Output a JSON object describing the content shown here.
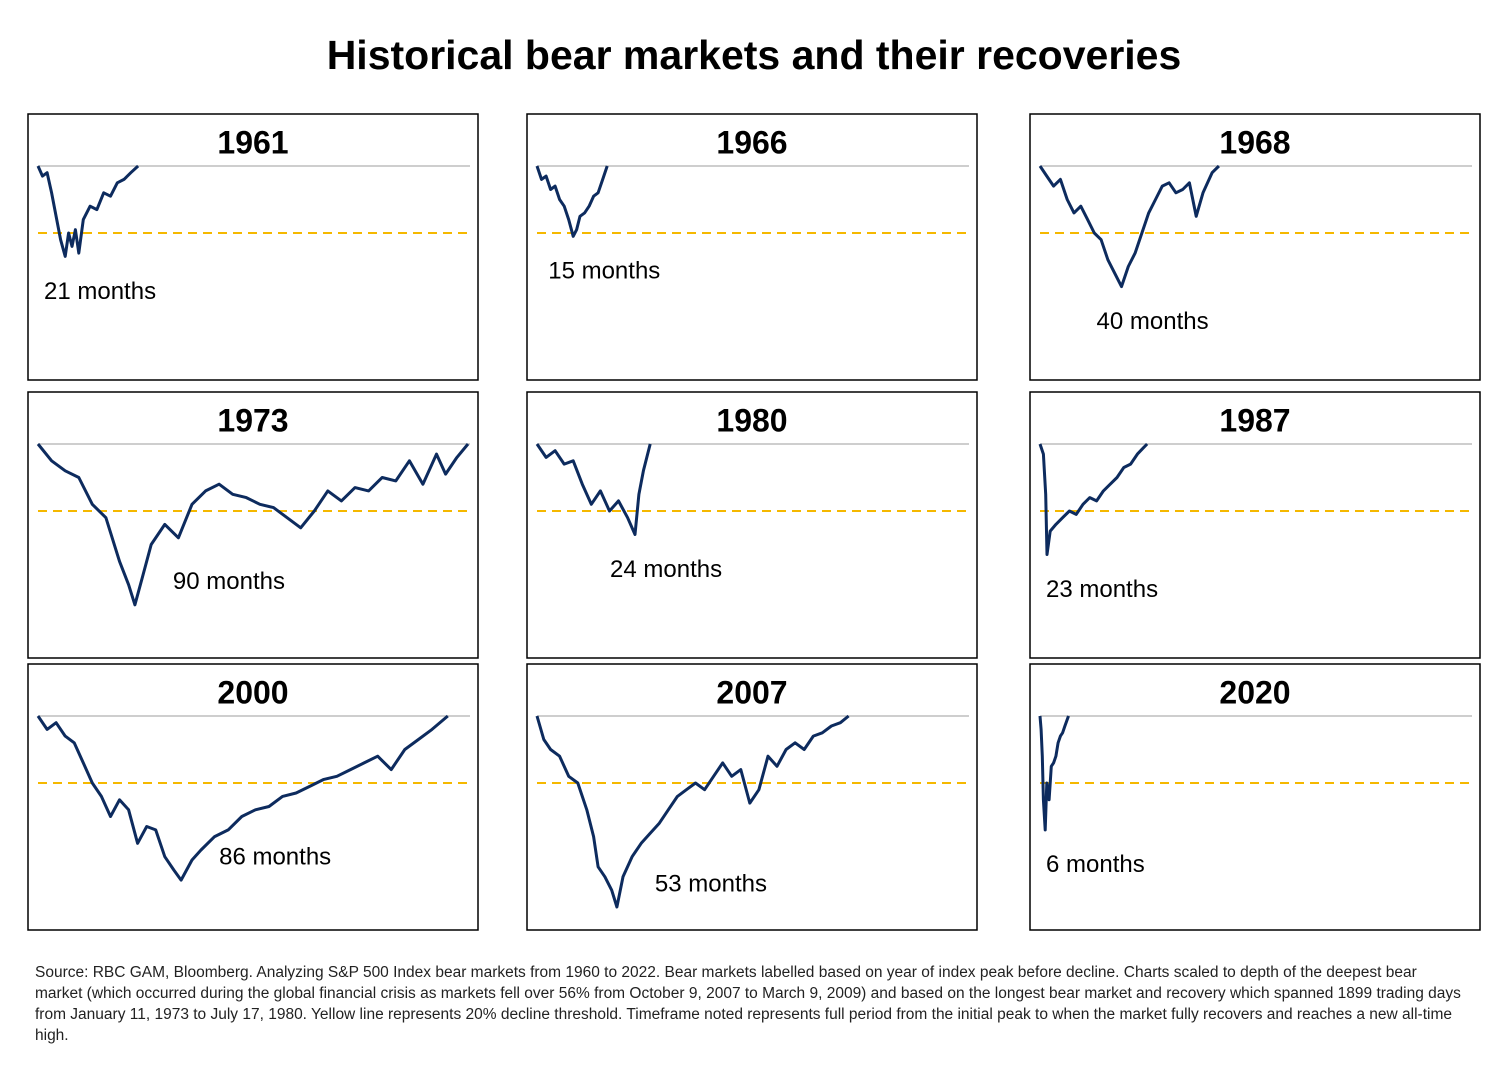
{
  "title": "Historical bear markets and their recoveries",
  "source": "Source: RBC GAM, Bloomberg. Analyzing S&P 500 Index bear markets from 1960 to 2022. Bear markets labelled based on year of index peak before decline. Charts scaled to depth of the deepest bear market (which occurred during the global financial crisis as markets fell over 56% from October 9, 2007 to March 9, 2009) and based on the longest bear market and recovery which spanned 1899 trading days from January 11, 1973 to July 17, 1980. Yellow line represents 20% decline threshold. Timeframe noted represents full period from the initial peak to when the market fully recovers and reaches a new all-time high.",
  "chart_data": [
    {
      "type": "line",
      "title": "1961",
      "annotation": "21 months",
      "color": "#0d2b5e",
      "xlim": [
        0,
        1899
      ],
      "ylim": [
        -60,
        0
      ],
      "peak_line": 0,
      "threshold_line": -20,
      "threshold_color": "#f5b800",
      "x": [
        0,
        20,
        40,
        60,
        80,
        100,
        120,
        135,
        150,
        165,
        180,
        200,
        230,
        260,
        290,
        320,
        350,
        380,
        410,
        442
      ],
      "values": [
        0,
        -3,
        -2,
        -8,
        -15,
        -22,
        -27,
        -20,
        -24,
        -19,
        -26,
        -16,
        -12,
        -13,
        -8,
        -9,
        -5,
        -4,
        -2,
        0
      ]
    },
    {
      "type": "line",
      "title": "1966",
      "annotation": "15 months",
      "color": "#0d2b5e",
      "xlim": [
        0,
        1899
      ],
      "ylim": [
        -60,
        0
      ],
      "peak_line": 0,
      "threshold_line": -20,
      "threshold_color": "#f5b800",
      "x": [
        0,
        20,
        40,
        60,
        80,
        100,
        120,
        140,
        160,
        175,
        190,
        210,
        230,
        250,
        270,
        290,
        310
      ],
      "values": [
        0,
        -4,
        -3,
        -7,
        -6,
        -10,
        -12,
        -16,
        -21,
        -19,
        -15,
        -14,
        -12,
        -9,
        -8,
        -4,
        0
      ]
    },
    {
      "type": "line",
      "title": "1968",
      "annotation": "40 months",
      "color": "#0d2b5e",
      "xlim": [
        0,
        1899
      ],
      "ylim": [
        -60,
        0
      ],
      "peak_line": 0,
      "threshold_line": -20,
      "threshold_color": "#f5b800",
      "x": [
        0,
        30,
        60,
        90,
        120,
        150,
        180,
        210,
        240,
        270,
        300,
        330,
        360,
        390,
        420,
        450,
        480,
        510,
        540,
        570,
        600,
        630,
        660,
        690,
        720,
        760,
        790
      ],
      "values": [
        0,
        -3,
        -6,
        -4,
        -10,
        -14,
        -12,
        -16,
        -20,
        -22,
        -28,
        -32,
        -36,
        -30,
        -26,
        -20,
        -14,
        -10,
        -6,
        -5,
        -8,
        -7,
        -5,
        -15,
        -8,
        -2,
        0
      ]
    },
    {
      "type": "line",
      "title": "1973",
      "annotation": "90 months",
      "color": "#0d2b5e",
      "xlim": [
        0,
        1899
      ],
      "ylim": [
        -60,
        0
      ],
      "peak_line": 0,
      "threshold_line": -20,
      "threshold_color": "#f5b800",
      "x": [
        0,
        60,
        120,
        180,
        240,
        300,
        360,
        400,
        428,
        460,
        500,
        560,
        620,
        680,
        740,
        800,
        860,
        920,
        980,
        1040,
        1100,
        1160,
        1220,
        1280,
        1340,
        1400,
        1460,
        1520,
        1580,
        1640,
        1700,
        1760,
        1800,
        1850,
        1899
      ],
      "values": [
        0,
        -5,
        -8,
        -10,
        -18,
        -22,
        -35,
        -42,
        -48,
        -40,
        -30,
        -24,
        -28,
        -18,
        -14,
        -12,
        -15,
        -16,
        -18,
        -19,
        -22,
        -25,
        -20,
        -14,
        -17,
        -13,
        -14,
        -10,
        -11,
        -5,
        -12,
        -3,
        -9,
        -4,
        0
      ]
    },
    {
      "type": "line",
      "title": "1980",
      "annotation": "24 months",
      "color": "#0d2b5e",
      "xlim": [
        0,
        1899
      ],
      "ylim": [
        -60,
        0
      ],
      "peak_line": 0,
      "threshold_line": -20,
      "threshold_color": "#f5b800",
      "x": [
        0,
        40,
        80,
        120,
        160,
        200,
        240,
        280,
        320,
        360,
        400,
        433,
        450,
        470,
        485,
        500
      ],
      "values": [
        0,
        -4,
        -2,
        -6,
        -5,
        -12,
        -18,
        -14,
        -20,
        -17,
        -22,
        -27,
        -15,
        -8,
        -4,
        0
      ]
    },
    {
      "type": "line",
      "title": "1987",
      "annotation": "23 months",
      "color": "#0d2b5e",
      "xlim": [
        0,
        1899
      ],
      "ylim": [
        -60,
        0
      ],
      "peak_line": 0,
      "threshold_line": -20,
      "threshold_color": "#f5b800",
      "x": [
        0,
        15,
        25,
        31,
        45,
        70,
        100,
        130,
        160,
        190,
        220,
        250,
        280,
        310,
        340,
        370,
        400,
        430,
        473
      ],
      "values": [
        0,
        -3,
        -15,
        -33,
        -26,
        -24,
        -22,
        -20,
        -21,
        -18,
        -16,
        -17,
        -14,
        -12,
        -10,
        -7,
        -6,
        -3,
        0
      ]
    },
    {
      "type": "line",
      "title": "2000",
      "annotation": "86 months",
      "color": "#0d2b5e",
      "xlim": [
        0,
        1899
      ],
      "ylim": [
        -60,
        0
      ],
      "peak_line": 0,
      "threshold_line": -20,
      "threshold_color": "#f5b800",
      "x": [
        0,
        40,
        80,
        120,
        160,
        200,
        240,
        280,
        320,
        360,
        400,
        440,
        480,
        520,
        560,
        600,
        632,
        680,
        720,
        780,
        840,
        900,
        960,
        1020,
        1080,
        1140,
        1200,
        1260,
        1320,
        1380,
        1440,
        1500,
        1560,
        1620,
        1680,
        1740,
        1810
      ],
      "values": [
        0,
        -4,
        -2,
        -6,
        -8,
        -14,
        -20,
        -24,
        -30,
        -25,
        -28,
        -38,
        -33,
        -34,
        -42,
        -46,
        -49,
        -43,
        -40,
        -36,
        -34,
        -30,
        -28,
        -27,
        -24,
        -23,
        -21,
        -19,
        -18,
        -16,
        -14,
        -12,
        -16,
        -10,
        -7,
        -4,
        0
      ]
    },
    {
      "type": "line",
      "title": "2007",
      "annotation": "53 months",
      "color": "#0d2b5e",
      "xlim": [
        0,
        1899
      ],
      "ylim": [
        -60,
        0
      ],
      "peak_line": 0,
      "threshold_line": -20,
      "threshold_color": "#f5b800",
      "x": [
        0,
        30,
        60,
        100,
        140,
        180,
        220,
        250,
        270,
        300,
        330,
        353,
        380,
        420,
        460,
        500,
        540,
        580,
        620,
        660,
        700,
        740,
        780,
        820,
        860,
        900,
        940,
        980,
        1020,
        1060,
        1100,
        1140,
        1180,
        1220,
        1260,
        1300,
        1340,
        1376
      ],
      "values": [
        0,
        -7,
        -10,
        -12,
        -18,
        -20,
        -28,
        -36,
        -45,
        -48,
        -52,
        -57,
        -48,
        -42,
        -38,
        -35,
        -32,
        -28,
        -24,
        -22,
        -20,
        -22,
        -18,
        -14,
        -18,
        -16,
        -26,
        -22,
        -12,
        -15,
        -10,
        -8,
        -10,
        -6,
        -5,
        -3,
        -2,
        0
      ]
    },
    {
      "type": "line",
      "title": "2020",
      "annotation": "6 months",
      "color": "#0d2b5e",
      "xlim": [
        0,
        1899
      ],
      "ylim": [
        -60,
        0
      ],
      "peak_line": 0,
      "threshold_line": -20,
      "threshold_color": "#f5b800",
      "x": [
        0,
        5,
        10,
        15,
        23,
        30,
        40,
        50,
        60,
        70,
        80,
        90,
        100,
        110,
        126
      ],
      "values": [
        0,
        -4,
        -12,
        -25,
        -34,
        -20,
        -25,
        -15,
        -14,
        -12,
        -8,
        -6,
        -5,
        -3,
        0
      ]
    }
  ]
}
